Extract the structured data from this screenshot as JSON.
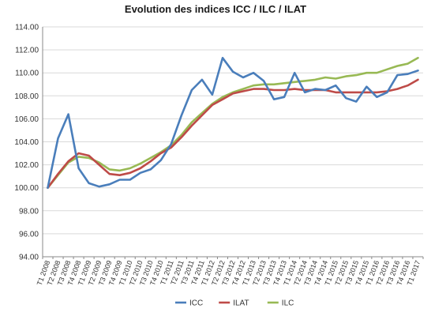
{
  "chart_data": {
    "type": "line",
    "title": "Evolution des indices ICC / ILC / ILAT",
    "xlabel": "",
    "ylabel": "",
    "ylim": [
      94,
      114
    ],
    "y_ticks": [
      "94.00",
      "96.00",
      "98.00",
      "100.00",
      "102.00",
      "104.00",
      "106.00",
      "108.00",
      "110.00",
      "112.00",
      "114.00"
    ],
    "grid": true,
    "legend_position": "bottom",
    "categories": [
      "T1 2008",
      "T2 2008",
      "T3 2008",
      "T4 2008",
      "T1 2009",
      "T2 2009",
      "T3 2009",
      "T4 2009",
      "T1 2010",
      "T2 2010",
      "T3 2010",
      "T4 2010",
      "T1 2011",
      "T2 2011",
      "T3 2011",
      "T4 2011",
      "T1 2012",
      "T2 2012",
      "T3 2012",
      "T4 2012",
      "T1 2013",
      "T2 2013",
      "T3 2013",
      "T4 2013",
      "T1 2014",
      "T2 2014",
      "T3 2014",
      "T4 2014",
      "T1 2015",
      "T2 2015",
      "T3 2015",
      "T4 2015",
      "T1 2016",
      "T2 2016",
      "T3 2016",
      "T4 2016",
      "T1 2017"
    ],
    "series": [
      {
        "name": "ICC",
        "color": "#4a7ebb",
        "values": [
          100.0,
          104.3,
          106.4,
          101.7,
          100.4,
          100.1,
          100.3,
          100.7,
          100.7,
          101.3,
          101.6,
          102.4,
          103.8,
          106.3,
          108.5,
          109.4,
          108.1,
          111.3,
          110.1,
          109.6,
          110.0,
          109.3,
          107.7,
          107.9,
          110.0,
          108.3,
          108.6,
          108.5,
          108.9,
          107.8,
          107.5,
          108.8,
          107.9,
          108.3,
          109.8,
          109.9,
          110.2
        ]
      },
      {
        "name": "ILAT",
        "color": "#be4b48",
        "values": [
          100.0,
          101.2,
          102.3,
          103.0,
          102.8,
          102.0,
          101.2,
          101.1,
          101.3,
          101.7,
          102.3,
          103.0,
          103.5,
          104.4,
          105.4,
          106.3,
          107.2,
          107.7,
          108.2,
          108.4,
          108.6,
          108.6,
          108.5,
          108.5,
          108.6,
          108.5,
          108.5,
          108.5,
          108.3,
          108.3,
          108.3,
          108.3,
          108.3,
          108.4,
          108.6,
          108.9,
          109.4
        ]
      },
      {
        "name": "ILC",
        "color": "#98b954",
        "values": [
          100.0,
          101.1,
          102.2,
          102.7,
          102.6,
          102.2,
          101.6,
          101.5,
          101.7,
          102.1,
          102.6,
          103.1,
          103.7,
          104.6,
          105.7,
          106.5,
          107.3,
          107.9,
          108.3,
          108.6,
          108.9,
          109.0,
          109.0,
          109.1,
          109.2,
          109.3,
          109.4,
          109.6,
          109.5,
          109.7,
          109.8,
          110.0,
          110.0,
          110.3,
          110.6,
          110.8,
          111.3
        ]
      }
    ]
  }
}
